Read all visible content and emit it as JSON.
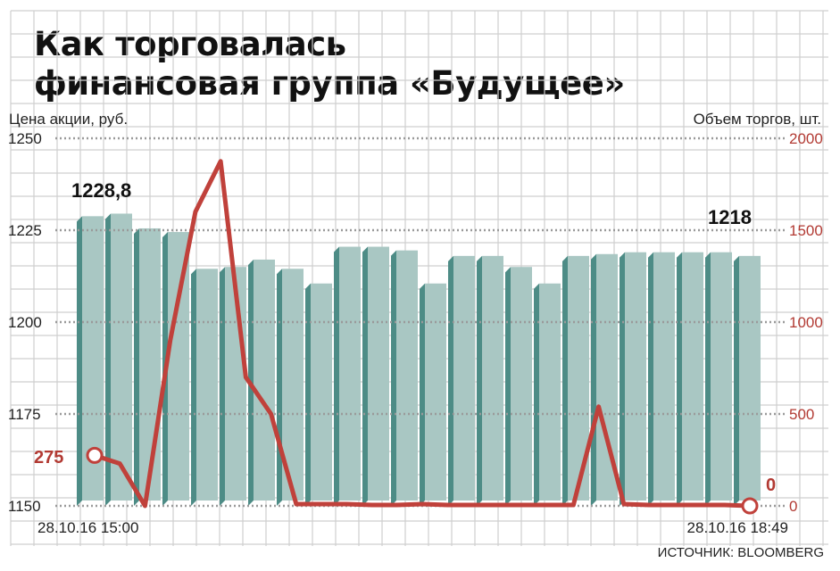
{
  "title_lines": [
    "Как торговалась",
    "финансовая группа «Будущее»"
  ],
  "source": "ИСТОЧНИК: BLOOMBERG",
  "colors": {
    "bar_face": "#a9c7c3",
    "bar_side": "#4d8c86",
    "line": "#c0413b",
    "axis_right_text": "#b23a33"
  },
  "chart_data": {
    "type": "bar",
    "left_axis_label": "Цена акции, руб.",
    "right_axis_label": "Объем торгов, шт.",
    "y_left_ticks": [
      "1250",
      "1225",
      "1200",
      "1175",
      "1150"
    ],
    "y_right_ticks": [
      "2000",
      "1500",
      "1000",
      "500",
      "0"
    ],
    "ylim_left": [
      1150,
      1250
    ],
    "ylim_right": [
      0,
      2000
    ],
    "x_start_label": "28.10.16 15:00",
    "x_end_label": "28.10.16 18:49",
    "grid": true,
    "series": [
      {
        "axis": "left",
        "values": [
          1228.8,
          1229.5,
          1225.5,
          1224.5,
          1214.5,
          1215,
          1217,
          1214.5,
          1210.5,
          1220.5,
          1220.5,
          1219.5,
          1210.5,
          1218,
          1218,
          1215,
          1210.5,
          1218,
          1218.5,
          1219,
          1219,
          1219,
          1219,
          1218
        ]
      },
      {
        "axis": "right",
        "type": "line",
        "values": [
          275,
          230,
          0,
          900,
          1600,
          1875,
          700,
          500,
          10,
          10,
          10,
          5,
          5,
          10,
          5,
          5,
          5,
          5,
          5,
          5,
          540,
          10,
          5,
          5,
          5,
          5,
          0
        ]
      }
    ],
    "annotations": {
      "first_price": "1228,8",
      "last_price": "1218",
      "first_volume": "275",
      "last_volume": "0"
    }
  }
}
